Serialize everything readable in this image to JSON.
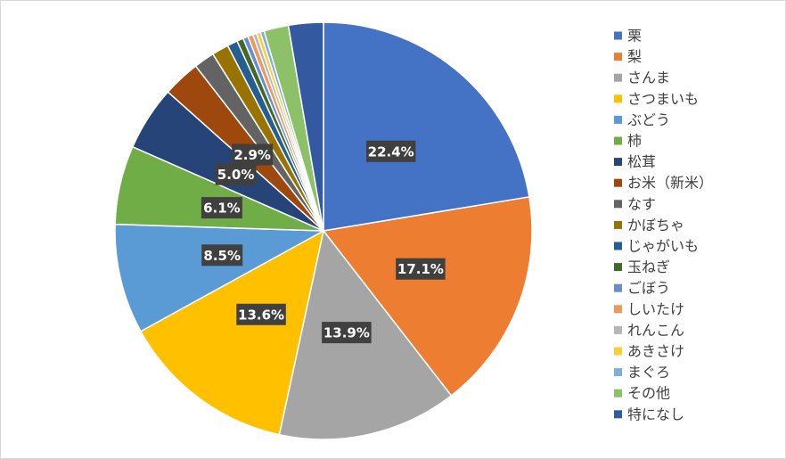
{
  "chart_data": {
    "type": "pie",
    "categories": [
      "栗",
      "梨",
      "さんま",
      "さつまいも",
      "ぶどう",
      "柿",
      "松茸",
      "お米（新米）",
      "なす",
      "かぼちゃ",
      "じゃがいも",
      "玉ねぎ",
      "ごぼう",
      "しいたけ",
      "れんこん",
      "あきさけ",
      "まぐろ",
      "その他",
      "特になし"
    ],
    "values": [
      22.4,
      17.1,
      13.9,
      13.6,
      8.5,
      6.1,
      5.0,
      2.9,
      1.6,
      1.3,
      0.8,
      0.5,
      0.4,
      0.4,
      0.3,
      0.3,
      0.3,
      1.9,
      2.7
    ],
    "value_labels": [
      "22.4%",
      "17.1%",
      "13.9%",
      "13.6%",
      "8.5%",
      "6.1%",
      "5.0%",
      "2.9%",
      null,
      null,
      null,
      null,
      null,
      null,
      null,
      null,
      null,
      null,
      null
    ],
    "colors": [
      "#4472c4",
      "#ed7d31",
      "#a5a5a5",
      "#ffc000",
      "#5b9bd5",
      "#70ad47",
      "#264478",
      "#9e480e",
      "#636363",
      "#997300",
      "#255e91",
      "#43682b",
      "#698ed0",
      "#f1975a",
      "#b7b7b7",
      "#ffcd33",
      "#7cafdd",
      "#8cc168",
      "#335aa1"
    ],
    "legend": "right"
  }
}
